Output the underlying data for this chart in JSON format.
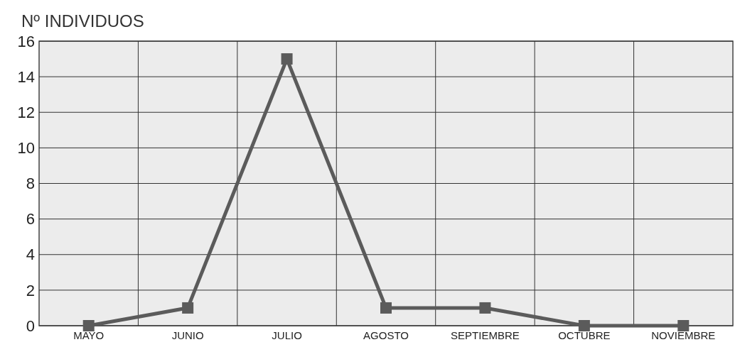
{
  "chart_data": {
    "type": "line",
    "ylabel": "Nº INDIVIDUOS",
    "categories": [
      "MAYO",
      "JUNIO",
      "JULIO",
      "AGOSTO",
      "SEPTIEMBRE",
      "OCTUBRE",
      "NOVIEMBRE"
    ],
    "series": [
      {
        "color": "#5b5b5b",
        "values": [
          0,
          1,
          15,
          1,
          1,
          0,
          0
        ]
      }
    ],
    "ylim": [
      0,
      16
    ],
    "yticks": [
      0,
      2,
      4,
      6,
      8,
      10,
      12,
      14,
      16
    ],
    "grid": true,
    "marker": "square",
    "line_style": "solid"
  }
}
